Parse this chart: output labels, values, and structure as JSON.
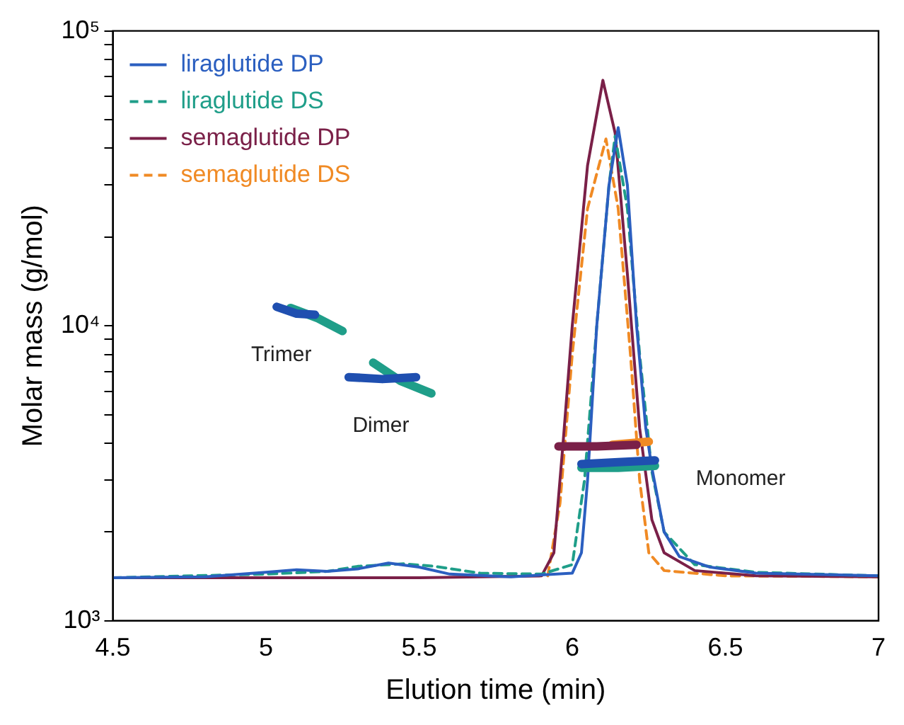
{
  "chart_data": {
    "type": "line",
    "xlabel": "Elution time (min)",
    "ylabel": "Molar mass (g/mol)",
    "xlim": [
      4.5,
      7
    ],
    "xticks": [
      4.5,
      5,
      5.5,
      6,
      6.5,
      7
    ],
    "ylim": [
      1000,
      100000
    ],
    "log": "y",
    "yticks": [
      {
        "value": 1000,
        "label": "10³"
      },
      {
        "value": 2000,
        "label": null
      },
      {
        "value": 3000,
        "label": null
      },
      {
        "value": 4000,
        "label": null
      },
      {
        "value": 5000,
        "label": null
      },
      {
        "value": 6000,
        "label": null
      },
      {
        "value": 7000,
        "label": null
      },
      {
        "value": 8000,
        "label": null
      },
      {
        "value": 9000,
        "label": null
      },
      {
        "value": 10000,
        "label": "10⁴"
      },
      {
        "value": 20000,
        "label": null
      },
      {
        "value": 30000,
        "label": null
      },
      {
        "value": 40000,
        "label": null
      },
      {
        "value": 50000,
        "label": null
      },
      {
        "value": 60000,
        "label": null
      },
      {
        "value": 70000,
        "label": null
      },
      {
        "value": 80000,
        "label": null
      },
      {
        "value": 90000,
        "label": null
      },
      {
        "value": 100000,
        "label": "10⁵"
      }
    ],
    "grid": false,
    "legend": "top left",
    "marker": "none",
    "series": [
      {
        "name": "liraglutide DP",
        "color": "#2b5fc0",
        "line_style": "solid",
        "x": [
          4.5,
          4.8,
          5.0,
          5.1,
          5.2,
          5.3,
          5.4,
          5.5,
          5.6,
          5.8,
          6.0,
          6.03,
          6.05,
          6.08,
          6.12,
          6.15,
          6.18,
          6.21,
          6.24,
          6.26,
          6.3,
          6.35,
          6.45,
          6.6,
          7.0
        ],
        "values": [
          1400,
          1410,
          1460,
          1490,
          1470,
          1500,
          1570,
          1520,
          1440,
          1410,
          1450,
          1700,
          3000,
          10000,
          30000,
          47000,
          30000,
          10000,
          4500,
          3300,
          2000,
          1650,
          1520,
          1450,
          1420
        ]
      },
      {
        "name": "liraglutide DS",
        "color": "#1f9e89",
        "line_style": "dashed",
        "x": [
          4.5,
          5.0,
          5.2,
          5.3,
          5.45,
          5.55,
          5.7,
          5.9,
          6.0,
          6.04,
          6.08,
          6.12,
          6.14,
          6.18,
          6.22,
          6.26,
          6.3,
          6.4,
          6.6,
          7.0
        ],
        "values": [
          1400,
          1440,
          1470,
          1530,
          1560,
          1530,
          1450,
          1440,
          1550,
          3000,
          10000,
          30000,
          44000,
          25000,
          8000,
          3200,
          2000,
          1550,
          1460,
          1420
        ]
      },
      {
        "name": "semaglutide DP",
        "color": "#7a2048",
        "line_style": "solid",
        "x": [
          4.5,
          5.5,
          5.9,
          5.94,
          5.97,
          6.0,
          6.05,
          6.1,
          6.14,
          6.18,
          6.22,
          6.26,
          6.3,
          6.4,
          6.6,
          7.0
        ],
        "values": [
          1400,
          1400,
          1420,
          1700,
          4000,
          10000,
          35000,
          68000,
          45000,
          15000,
          4500,
          2200,
          1700,
          1480,
          1420,
          1410
        ]
      },
      {
        "name": "semaglutide DS",
        "color": "#f08a24",
        "line_style": "dashed",
        "x": [
          5.92,
          5.96,
          6.0,
          6.05,
          6.11,
          6.15,
          6.19,
          6.22,
          6.25,
          6.3,
          6.5,
          7.0
        ],
        "values": [
          1420,
          2500,
          8000,
          25000,
          43000,
          25000,
          8000,
          3000,
          1700,
          1480,
          1420,
          1410
        ]
      },
      {
        "color": "#1f4fb0",
        "line_style": "solid",
        "x": [
          5.035,
          5.1,
          5.16,
          5.165,
          5.27,
          5.38,
          5.49,
          5.495,
          6.03,
          6.15,
          6.27
        ],
        "values": [
          11600,
          11000,
          10900,
          null,
          6700,
          6600,
          6700,
          null,
          3400,
          3450,
          3500
        ]
      },
      {
        "color": "#1f9e89",
        "line_style": "solid",
        "x": [
          5.08,
          5.17,
          5.25,
          5.255,
          5.35,
          5.44,
          5.54,
          5.545,
          6.03,
          6.15,
          6.27
        ],
        "values": [
          11500,
          10600,
          9600,
          null,
          7500,
          6500,
          5900,
          null,
          3300,
          3300,
          3350
        ]
      },
      {
        "color": "#7a2048",
        "line_style": "solid",
        "x": [
          5.955,
          6.08,
          6.21
        ],
        "values": [
          3900,
          3900,
          3950
        ]
      },
      {
        "color": "#f08a24",
        "line_style": "solid",
        "x": [
          6.13,
          6.19,
          6.25
        ],
        "values": [
          3950,
          4000,
          4050
        ]
      }
    ],
    "annotations": [
      "Trimer",
      "Dimer",
      "Monomer"
    ]
  }
}
